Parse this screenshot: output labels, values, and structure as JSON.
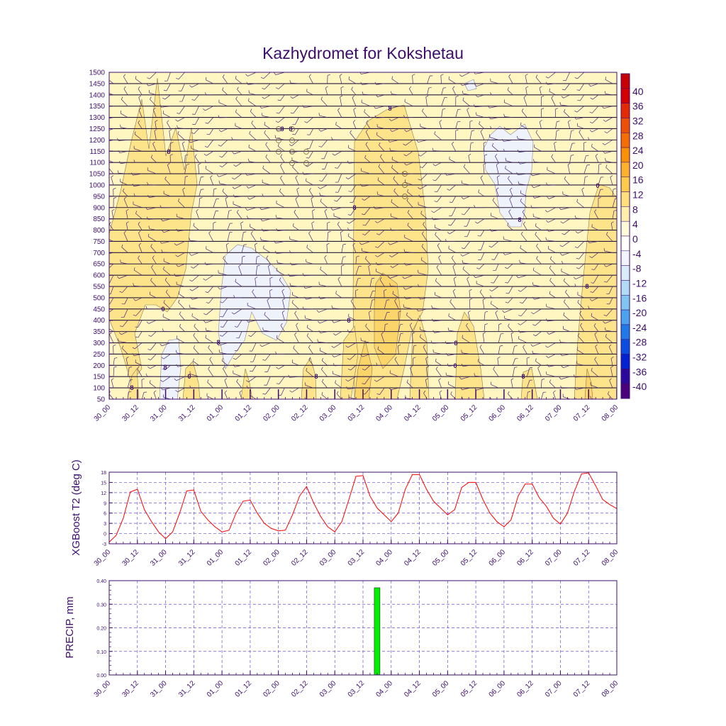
{
  "title": "Kazhydromet for Kokshetau",
  "colors": {
    "frame": "#3d0d6e",
    "t2_line": "#ff0000",
    "bar": "#00ee00",
    "grid": "#6a4fd0",
    "barb": "#4b2a7a"
  },
  "chart_data": [
    {
      "type": "heatmap",
      "title": "Kazhydromet for Kokshetau",
      "xlabel": "",
      "ylabel": "",
      "x_tick_labels": [
        "30_00",
        "30_12",
        "31_00",
        "31_12",
        "01_00",
        "01_12",
        "02_00",
        "02_12",
        "03_00",
        "03_12",
        "04_00",
        "04_12",
        "05_00",
        "05_12",
        "06_00",
        "06_12",
        "07_00",
        "07_12",
        "08_00"
      ],
      "y_tick_labels": [
        "1500",
        "1450",
        "1400",
        "1350",
        "1300",
        "1250",
        "1200",
        "1150",
        "1100",
        "1050",
        "1000",
        "950",
        "900",
        "850",
        "800",
        "750",
        "700",
        "650",
        "600",
        "550",
        "500",
        "450",
        "400",
        "350",
        "300",
        "250",
        "200",
        "150",
        "100",
        "50"
      ],
      "ylim": [
        50,
        1500
      ],
      "contour_labels": [
        "8",
        "8",
        "8",
        "0",
        "8",
        "8",
        "0",
        "8",
        "8",
        "8",
        "8",
        "0",
        "8",
        "8",
        "8",
        "0",
        "8",
        "8"
      ],
      "colorbar": {
        "labels": [
          "40",
          "36",
          "32",
          "28",
          "24",
          "20",
          "16",
          "12",
          "8",
          "4",
          "0",
          "-4",
          "-8",
          "-12",
          "-16",
          "-20",
          "-24",
          "-28",
          "-32",
          "-36",
          "-40"
        ],
        "colors": [
          "#d40000",
          "#e32a00",
          "#ef4f00",
          "#f66e00",
          "#fb9000",
          "#fdb22a",
          "#ffcc4a",
          "#ffe07a",
          "#fff1ab",
          "#fffbd8",
          "#ffffff",
          "#f1f4ff",
          "#d9ecfb",
          "#b2dcf6",
          "#80c6f0",
          "#4aa3ec",
          "#1f7ae5",
          "#0a4ee0",
          "#0022d0",
          "#2a0a9a",
          "#4a007a"
        ]
      },
      "fill_regions": [
        {
          "level": "12",
          "color": "#fde48a"
        },
        {
          "level": "16",
          "color": "#fcd56a"
        },
        {
          "level": "-4",
          "color": "#eef2fb"
        }
      ]
    },
    {
      "type": "line",
      "title": "",
      "xlabel": "",
      "ylabel": "XGBoost T2 (deg C)",
      "x_tick_labels": [
        "30_00",
        "30_12",
        "31_00",
        "31_12",
        "01_00",
        "01_12",
        "02_00",
        "02_12",
        "03_00",
        "03_12",
        "04_00",
        "04_12",
        "05_00",
        "05_12",
        "06_00",
        "06_12",
        "07_00",
        "07_12",
        "08_00"
      ],
      "y_tick_labels": [
        "18",
        "15",
        "12",
        "9",
        "6",
        "3",
        "0",
        "-3"
      ],
      "ylim": [
        -3,
        18
      ],
      "series": [
        {
          "name": "XGBoost T2",
          "step_hours": 3,
          "values": [
            -2.5,
            -0.5,
            4.5,
            12.2,
            13.0,
            7.0,
            3.5,
            0.5,
            -1.5,
            0.5,
            6.0,
            12.5,
            12.8,
            6.5,
            4.0,
            2.0,
            0.5,
            1.0,
            6.0,
            9.5,
            9.8,
            6.0,
            3.0,
            1.5,
            0.8,
            1.0,
            5.5,
            11.0,
            13.8,
            9.0,
            5.0,
            2.0,
            0.5,
            3.5,
            10.0,
            16.8,
            17.0,
            11.0,
            7.5,
            5.5,
            3.5,
            6.0,
            13.0,
            17.3,
            17.3,
            13.0,
            9.5,
            7.5,
            5.5,
            7.0,
            13.5,
            15.0,
            15.0,
            10.0,
            6.0,
            3.5,
            2.0,
            4.0,
            11.0,
            14.5,
            14.5,
            10.5,
            8.0,
            4.5,
            2.8,
            6.0,
            12.5,
            17.5,
            17.8,
            14.0,
            10.0,
            8.5,
            7.3
          ]
        }
      ]
    },
    {
      "type": "bar",
      "title": "",
      "xlabel": "",
      "ylabel": "PRECIP, mm",
      "x_tick_labels": [
        "30_00",
        "30_12",
        "31_00",
        "31_12",
        "01_00",
        "01_12",
        "02_00",
        "02_12",
        "03_00",
        "03_12",
        "04_00",
        "04_12",
        "05_00",
        "05_12",
        "06_00",
        "06_12",
        "07_00",
        "07_12",
        "08_00"
      ],
      "y_tick_labels": [
        "0.40",
        "0.30",
        "0.20",
        "0.10",
        "0.00"
      ],
      "ylim": [
        0,
        0.4
      ],
      "bars": [
        {
          "x_hours": 114,
          "value": 0.37
        }
      ]
    }
  ]
}
